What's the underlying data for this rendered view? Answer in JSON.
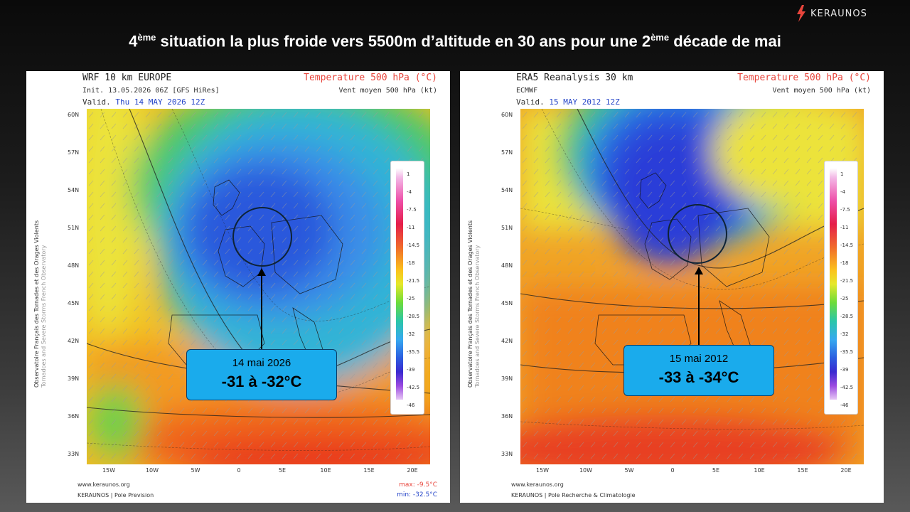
{
  "brand": {
    "name": "KERAUNOS",
    "icon": "lightning-bolt-icon",
    "color": "#e8453c"
  },
  "slide": {
    "title_pre": "4",
    "title_sup1": "ème",
    "title_mid": " situation la plus froide vers 5500m d’altitude en 30 ans pour une 2",
    "title_sup2": "ème",
    "title_post": " décade de mai"
  },
  "maps": [
    {
      "model": "WRF 10 km EUROPE",
      "init": "Init.   13.05.2026 06Z [GFS HiRes]",
      "valid_label": "Valid.",
      "valid_date": "Thu 14 MAY 2026 12Z",
      "param": "Temperature 500 hPa (°C)",
      "wind": "Vent moyen 500 hPa (kt)",
      "side_label": "Observatoire Français des Tornades et des Orages Violents",
      "side_sublabel": "Tornadoes and Severe Storms French Observatory",
      "site": "www.keraunos.org",
      "org": "KERAUNOS | Pole Prevision",
      "max": "max: -9.5°C",
      "min": "min: -32.5°C",
      "callout_date": "14 mai 2026",
      "callout_temp": "-31 à -32°C"
    },
    {
      "model": "ERA5 Reanalysis 30 km",
      "init": "ECMWF",
      "valid_label": "Valid.",
      "valid_date": "15 MAY 2012 12Z",
      "param": "Temperature 500 hPa (°C)",
      "wind": "Vent moyen 500 hPa (kt)",
      "side_label": "Observatoire Français des Tornades et des Orages Violents",
      "side_sublabel": "Tornadoes and Severe Storms French Observatory",
      "site": "www.keraunos.org",
      "org": "KERAUNOS | Pole Recherche & Climatologie",
      "max": "",
      "min": "",
      "callout_date": "15 mai 2012",
      "callout_temp": "-33 à -34°C"
    }
  ],
  "axes": {
    "lat": [
      "60N",
      "57N",
      "54N",
      "51N",
      "48N",
      "45N",
      "42N",
      "39N",
      "36N",
      "33N"
    ],
    "lon": [
      "15W",
      "10W",
      "5W",
      "0",
      "5E",
      "10E",
      "15E",
      "20E"
    ]
  },
  "colorbar": {
    "ticks": [
      "1",
      "-4",
      "-7.5",
      "-11",
      "-14.5",
      "-18",
      "-21.5",
      "-25",
      "-28.5",
      "-32",
      "-35.5",
      "-39",
      "-42.5",
      "-46"
    ]
  }
}
